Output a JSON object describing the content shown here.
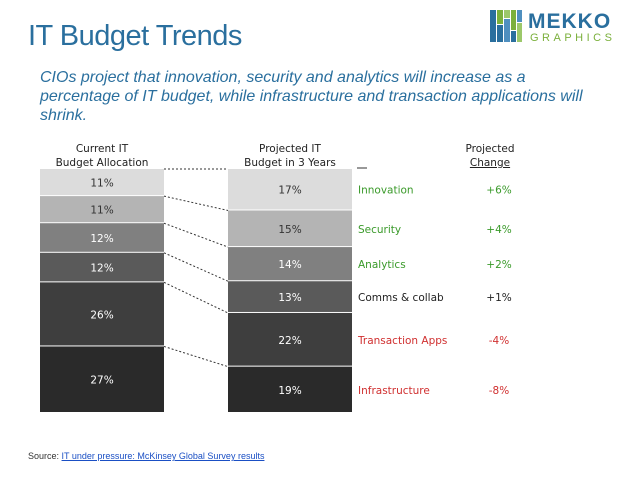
{
  "title": "IT Budget Trends",
  "subtitle": "CIOs project that innovation, security and analytics will increase as a percentage of IT budget, while infrastructure and transaction applications will shrink.",
  "logo": {
    "word": "MEKKO",
    "sub": "GRAPHICS"
  },
  "headers": {
    "current": [
      "Current IT",
      "Budget Allocation"
    ],
    "projected": [
      "Projected IT",
      "Budget in 3 Years"
    ],
    "change": [
      "Projected",
      "Change"
    ]
  },
  "source": {
    "prefix": "Source: ",
    "link": "IT under pressure: McKinsey Global Survey results"
  },
  "colors": {
    "accent": "#2a6f9e",
    "positive": "#3a9a2a",
    "negative": "#d03030",
    "neutral": "#222222"
  },
  "chart_data": {
    "type": "bar",
    "categories": [
      "Innovation",
      "Security",
      "Analytics",
      "Comms & collab",
      "Transaction Apps",
      "Infrastructure"
    ],
    "series": [
      {
        "name": "Current IT Budget Allocation",
        "values": [
          11,
          11,
          12,
          12,
          26,
          27
        ],
        "labels": [
          "11%",
          "11%",
          "12%",
          "12%",
          "26%",
          "27%"
        ]
      },
      {
        "name": "Projected IT Budget in 3 Years",
        "values": [
          17,
          15,
          14,
          13,
          22,
          19
        ],
        "labels": [
          "17%",
          "15%",
          "14%",
          "13%",
          "22%",
          "19%"
        ]
      }
    ],
    "change": [
      "+6%",
      "+4%",
      "+2%",
      "+1%",
      "-4%",
      "-8%"
    ],
    "change_sign": [
      "positive",
      "positive",
      "positive",
      "neutral",
      "negative",
      "negative"
    ],
    "seg_colors": [
      "#dcdcdc",
      "#b4b4b4",
      "#808080",
      "#5a5a5a",
      "#3e3e3e",
      "#2a2a2a"
    ],
    "label_colors": [
      "#333333",
      "#333333",
      "#ffffff",
      "#ffffff",
      "#ffffff",
      "#ffffff"
    ]
  }
}
